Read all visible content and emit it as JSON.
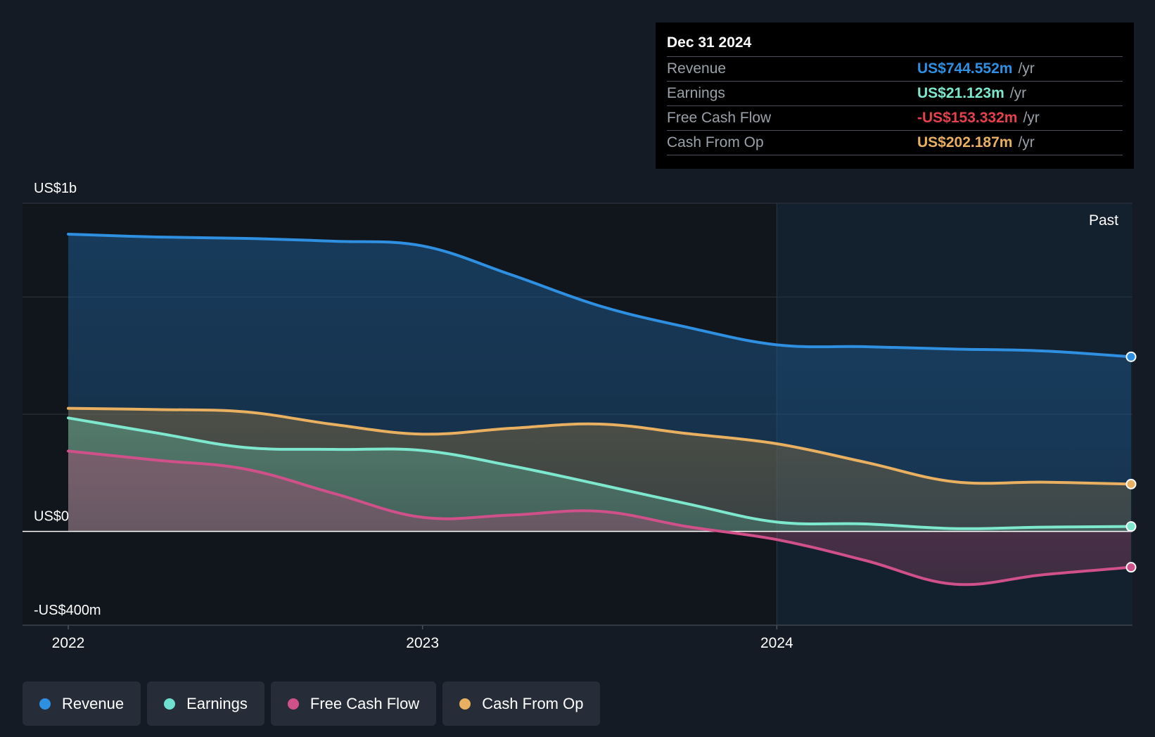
{
  "tooltip": {
    "date": "Dec 31 2024",
    "rows": [
      {
        "label": "Revenue",
        "value": "US$744.552m",
        "unit": "/yr",
        "color": "#2f8fe0"
      },
      {
        "label": "Earnings",
        "value": "US$21.123m",
        "unit": "/yr",
        "color": "#7ee8cf"
      },
      {
        "label": "Free Cash Flow",
        "value": "-US$153.332m",
        "unit": "/yr",
        "color": "#e5414d"
      },
      {
        "label": "Cash From Op",
        "value": "US$202.187m",
        "unit": "/yr",
        "color": "#e8b060"
      }
    ]
  },
  "legend": [
    {
      "label": "Revenue",
      "color": "#2f8fe0"
    },
    {
      "label": "Earnings",
      "color": "#6fe0d0"
    },
    {
      "label": "Free Cash Flow",
      "color": "#d0508a"
    },
    {
      "label": "Cash From Op",
      "color": "#e8b060"
    }
  ],
  "chart_data": {
    "type": "area",
    "title": "",
    "xlabel": "",
    "ylabel": "",
    "ylim": [
      -400,
      1400
    ],
    "ytick_labels": [
      {
        "value": 1400,
        "label": "US$1b"
      },
      {
        "value": 0,
        "label": "US$0"
      },
      {
        "value": -400,
        "label": "-US$400m"
      }
    ],
    "xlim": [
      2021.87,
      2025.0
    ],
    "xtick_labels": [
      {
        "value": 2022.0,
        "label": "2022"
      },
      {
        "value": 2023.0,
        "label": "2023"
      },
      {
        "value": 2024.0,
        "label": "2024"
      }
    ],
    "grid": true,
    "past_label": "Past",
    "past_start": 2024.0,
    "x": [
      2022.0,
      2022.25,
      2022.5,
      2022.75,
      2023.0,
      2023.25,
      2023.5,
      2023.75,
      2024.0,
      2024.25,
      2024.5,
      2024.75,
      2025.0
    ],
    "series": [
      {
        "name": "Revenue",
        "color": "#2f8fe0",
        "values": [
          1268,
          1256,
          1250,
          1238,
          1218,
          1095,
          962,
          870,
          796,
          788,
          778,
          770,
          745
        ]
      },
      {
        "name": "Cash From Op",
        "color": "#e8b060",
        "values": [
          525,
          520,
          510,
          456,
          415,
          440,
          458,
          417,
          374,
          295,
          212,
          210,
          202
        ]
      },
      {
        "name": "Earnings",
        "color": "#7ee8cf",
        "values": [
          484,
          420,
          358,
          350,
          345,
          280,
          200,
          117,
          40,
          32,
          12,
          18,
          21
        ]
      },
      {
        "name": "Free Cash Flow",
        "color": "#d0508a",
        "values": [
          343,
          304,
          266,
          162,
          60,
          70,
          86,
          20,
          -35,
          -124,
          -225,
          -185,
          -153
        ]
      }
    ]
  }
}
